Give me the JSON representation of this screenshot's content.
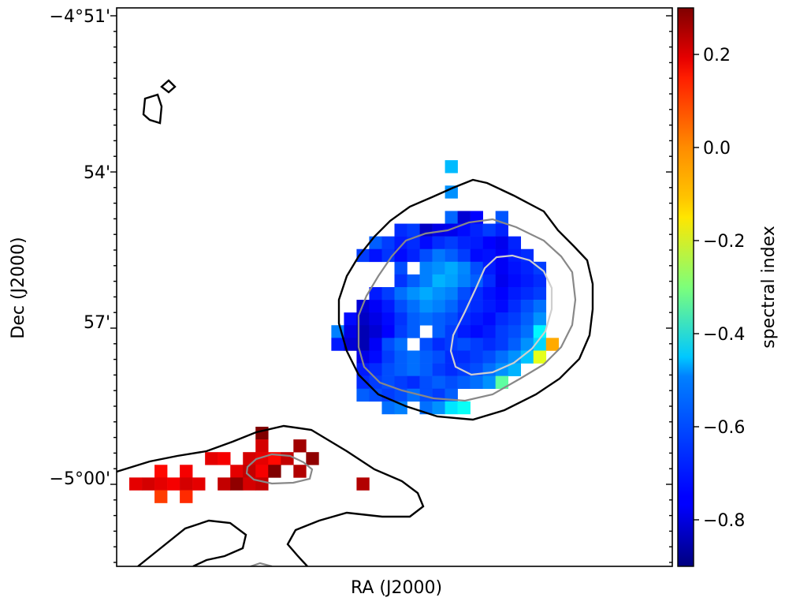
{
  "chart_data": {
    "type": "heatmap",
    "title": "",
    "xlabel": "RA (J2000)",
    "ylabel": "Dec (J2000)",
    "y_ticks": [
      "−4°51'",
      "54'",
      "57'",
      "−5°00'"
    ],
    "x_ticks": [],
    "colorbar": {
      "label": "spectral index",
      "colormap": "jet",
      "range": [
        -0.9,
        0.3
      ],
      "ticks": [
        0.2,
        0.0,
        -0.2,
        -0.4,
        -0.6,
        -0.8
      ],
      "tick_labels": [
        "0.2",
        "0.0",
        "−0.2",
        "−0.4",
        "−0.6",
        "−0.8"
      ]
    },
    "grid": false,
    "contours": [
      {
        "name": "outer contour",
        "color": "#000000"
      },
      {
        "name": "middle contour",
        "color": "#888888"
      },
      {
        "name": "inner contour",
        "color": "#cfcfcf"
      }
    ],
    "pixel_grid": {
      "columns": 44,
      "rows": 44,
      "cells": [
        [
          26,
          12,
          -0.53
        ],
        [
          26,
          14,
          -0.58
        ],
        [
          26,
          16,
          -0.63
        ],
        [
          26,
          17,
          -0.7
        ],
        [
          27,
          16,
          -0.8
        ],
        [
          28,
          16,
          -0.75
        ],
        [
          30,
          16,
          -0.65
        ],
        [
          22,
          17,
          -0.7
        ],
        [
          23,
          17,
          -0.68
        ],
        [
          24,
          17,
          -0.82
        ],
        [
          25,
          17,
          -0.78
        ],
        [
          26,
          17,
          -0.77
        ],
        [
          27,
          17,
          -0.74
        ],
        [
          28,
          17,
          -0.71
        ],
        [
          29,
          17,
          -0.68
        ],
        [
          30,
          17,
          -0.71
        ],
        [
          20,
          18,
          -0.64
        ],
        [
          21,
          18,
          -0.68
        ],
        [
          22,
          18,
          -0.72
        ],
        [
          23,
          18,
          -0.7
        ],
        [
          24,
          18,
          -0.74
        ],
        [
          25,
          18,
          -0.7
        ],
        [
          26,
          18,
          -0.68
        ],
        [
          27,
          18,
          -0.71
        ],
        [
          28,
          18,
          -0.72
        ],
        [
          29,
          18,
          -0.75
        ],
        [
          30,
          18,
          -0.77
        ],
        [
          31,
          18,
          -0.71
        ],
        [
          19,
          19,
          -0.68
        ],
        [
          20,
          19,
          -0.73
        ],
        [
          21,
          19,
          -0.69
        ],
        [
          22,
          19,
          -0.74
        ],
        [
          23,
          19,
          -0.71
        ],
        [
          24,
          19,
          -0.66
        ],
        [
          25,
          19,
          -0.61
        ],
        [
          26,
          19,
          -0.64
        ],
        [
          27,
          19,
          -0.68
        ],
        [
          28,
          19,
          -0.74
        ],
        [
          29,
          19,
          -0.73
        ],
        [
          30,
          19,
          -0.76
        ],
        [
          31,
          19,
          -0.72
        ],
        [
          32,
          19,
          -0.7
        ],
        [
          22,
          20,
          -0.66
        ],
        [
          24,
          20,
          -0.6
        ],
        [
          25,
          20,
          -0.58
        ],
        [
          26,
          20,
          -0.55
        ],
        [
          27,
          20,
          -0.59
        ],
        [
          28,
          20,
          -0.66
        ],
        [
          29,
          20,
          -0.72
        ],
        [
          30,
          20,
          -0.76
        ],
        [
          31,
          20,
          -0.73
        ],
        [
          32,
          20,
          -0.71
        ],
        [
          33,
          20,
          -0.68
        ],
        [
          22,
          21,
          -0.69
        ],
        [
          23,
          21,
          -0.64
        ],
        [
          24,
          21,
          -0.6
        ],
        [
          25,
          21,
          -0.54
        ],
        [
          26,
          21,
          -0.56
        ],
        [
          27,
          21,
          -0.6
        ],
        [
          28,
          21,
          -0.64
        ],
        [
          29,
          21,
          -0.7
        ],
        [
          30,
          21,
          -0.77
        ],
        [
          31,
          21,
          -0.74
        ],
        [
          32,
          21,
          -0.72
        ],
        [
          33,
          21,
          -0.7
        ],
        [
          20,
          22,
          -0.72
        ],
        [
          21,
          22,
          -0.68
        ],
        [
          22,
          22,
          -0.62
        ],
        [
          23,
          22,
          -0.58
        ],
        [
          24,
          22,
          -0.55
        ],
        [
          25,
          22,
          -0.58
        ],
        [
          26,
          22,
          -0.6
        ],
        [
          27,
          22,
          -0.66
        ],
        [
          28,
          22,
          -0.7
        ],
        [
          29,
          22,
          -0.73
        ],
        [
          30,
          22,
          -0.75
        ],
        [
          31,
          22,
          -0.72
        ],
        [
          32,
          22,
          -0.7
        ],
        [
          33,
          22,
          -0.68
        ],
        [
          19,
          23,
          -0.8
        ],
        [
          20,
          23,
          -0.76
        ],
        [
          21,
          23,
          -0.72
        ],
        [
          22,
          23,
          -0.66
        ],
        [
          23,
          23,
          -0.62
        ],
        [
          24,
          23,
          -0.58
        ],
        [
          25,
          23,
          -0.6
        ],
        [
          26,
          23,
          -0.63
        ],
        [
          27,
          23,
          -0.68
        ],
        [
          28,
          23,
          -0.7
        ],
        [
          29,
          23,
          -0.72
        ],
        [
          30,
          23,
          -0.74
        ],
        [
          31,
          23,
          -0.7
        ],
        [
          32,
          23,
          -0.66
        ],
        [
          33,
          23,
          -0.62
        ],
        [
          18,
          24,
          -0.74
        ],
        [
          19,
          24,
          -0.82
        ],
        [
          20,
          24,
          -0.78
        ],
        [
          21,
          24,
          -0.74
        ],
        [
          22,
          24,
          -0.69
        ],
        [
          23,
          24,
          -0.64
        ],
        [
          24,
          24,
          -0.62
        ],
        [
          25,
          24,
          -0.64
        ],
        [
          26,
          24,
          -0.66
        ],
        [
          27,
          24,
          -0.7
        ],
        [
          28,
          24,
          -0.72
        ],
        [
          29,
          24,
          -0.74
        ],
        [
          30,
          24,
          -0.7
        ],
        [
          31,
          24,
          -0.68
        ],
        [
          32,
          24,
          -0.64
        ],
        [
          33,
          24,
          -0.58
        ],
        [
          17,
          25,
          -0.6
        ],
        [
          18,
          25,
          -0.78
        ],
        [
          19,
          25,
          -0.84
        ],
        [
          20,
          25,
          -0.8
        ],
        [
          21,
          25,
          -0.75
        ],
        [
          22,
          25,
          -0.68
        ],
        [
          23,
          25,
          -0.64
        ],
        [
          25,
          25,
          -0.64
        ],
        [
          26,
          25,
          -0.68
        ],
        [
          27,
          25,
          -0.72
        ],
        [
          28,
          25,
          -0.74
        ],
        [
          29,
          25,
          -0.72
        ],
        [
          30,
          25,
          -0.68
        ],
        [
          31,
          25,
          -0.66
        ],
        [
          32,
          25,
          -0.62
        ],
        [
          33,
          25,
          -0.46
        ],
        [
          17,
          26,
          -0.72
        ],
        [
          18,
          26,
          -0.8
        ],
        [
          19,
          26,
          -0.84
        ],
        [
          20,
          26,
          -0.76
        ],
        [
          21,
          26,
          -0.66
        ],
        [
          22,
          26,
          -0.62
        ],
        [
          24,
          26,
          -0.66
        ],
        [
          25,
          26,
          -0.7
        ],
        [
          26,
          26,
          -0.68
        ],
        [
          27,
          26,
          -0.66
        ],
        [
          28,
          26,
          -0.68
        ],
        [
          29,
          26,
          -0.7
        ],
        [
          30,
          26,
          -0.68
        ],
        [
          31,
          26,
          -0.64
        ],
        [
          32,
          26,
          -0.58
        ],
        [
          33,
          26,
          -0.5
        ],
        [
          34,
          26,
          -0.05
        ],
        [
          19,
          27,
          -0.78
        ],
        [
          20,
          27,
          -0.74
        ],
        [
          21,
          27,
          -0.68
        ],
        [
          22,
          27,
          -0.64
        ],
        [
          23,
          27,
          -0.62
        ],
        [
          24,
          27,
          -0.64
        ],
        [
          25,
          27,
          -0.66
        ],
        [
          26,
          27,
          -0.7
        ],
        [
          27,
          27,
          -0.7
        ],
        [
          28,
          27,
          -0.68
        ],
        [
          29,
          27,
          -0.66
        ],
        [
          30,
          27,
          -0.62
        ],
        [
          31,
          27,
          -0.58
        ],
        [
          32,
          27,
          -0.52
        ],
        [
          33,
          27,
          -0.18
        ],
        [
          19,
          28,
          -0.72
        ],
        [
          20,
          28,
          -0.7
        ],
        [
          21,
          28,
          -0.66
        ],
        [
          22,
          28,
          -0.64
        ],
        [
          23,
          28,
          -0.62
        ],
        [
          24,
          28,
          -0.64
        ],
        [
          25,
          28,
          -0.68
        ],
        [
          26,
          28,
          -0.7
        ],
        [
          27,
          28,
          -0.68
        ],
        [
          28,
          28,
          -0.66
        ],
        [
          29,
          28,
          -0.62
        ],
        [
          30,
          28,
          -0.58
        ],
        [
          31,
          28,
          -0.54
        ],
        [
          19,
          29,
          -0.7
        ],
        [
          20,
          29,
          -0.68
        ],
        [
          21,
          29,
          -0.66
        ],
        [
          22,
          29,
          -0.68
        ],
        [
          23,
          29,
          -0.7
        ],
        [
          24,
          29,
          -0.66
        ],
        [
          25,
          29,
          -0.64
        ],
        [
          26,
          29,
          -0.66
        ],
        [
          27,
          29,
          -0.64
        ],
        [
          28,
          29,
          -0.62
        ],
        [
          29,
          29,
          -0.58
        ],
        [
          30,
          29,
          -0.34
        ],
        [
          19,
          30,
          -0.64
        ],
        [
          20,
          30,
          -0.66
        ],
        [
          21,
          30,
          -0.68
        ],
        [
          22,
          30,
          -0.66
        ],
        [
          23,
          30,
          -0.62
        ],
        [
          24,
          30,
          -0.66
        ],
        [
          25,
          30,
          -0.68
        ],
        [
          26,
          30,
          -0.64
        ],
        [
          21,
          31,
          -0.62
        ],
        [
          22,
          31,
          -0.6
        ],
        [
          24,
          31,
          -0.62
        ],
        [
          25,
          31,
          -0.58
        ],
        [
          26,
          31,
          -0.48
        ],
        [
          27,
          31,
          -0.44
        ],
        [
          11,
          33,
          0.3
        ],
        [
          11,
          34,
          0.2
        ],
        [
          14,
          34,
          0.26
        ],
        [
          7,
          35,
          0.18
        ],
        [
          8,
          35,
          0.16
        ],
        [
          10,
          35,
          0.2
        ],
        [
          11,
          35,
          0.18
        ],
        [
          12,
          35,
          0.14
        ],
        [
          13,
          35,
          0.22
        ],
        [
          15,
          35,
          0.28
        ],
        [
          3,
          36,
          0.14
        ],
        [
          5,
          36,
          0.16
        ],
        [
          9,
          36,
          0.18
        ],
        [
          10,
          36,
          0.22
        ],
        [
          11,
          36,
          0.16
        ],
        [
          12,
          36,
          0.3
        ],
        [
          14,
          36,
          0.24
        ],
        [
          1,
          37,
          0.18
        ],
        [
          2,
          37,
          0.2
        ],
        [
          3,
          37,
          0.18
        ],
        [
          4,
          37,
          0.16
        ],
        [
          5,
          37,
          0.2
        ],
        [
          6,
          37,
          0.18
        ],
        [
          8,
          37,
          0.22
        ],
        [
          9,
          37,
          0.28
        ],
        [
          10,
          37,
          0.2
        ],
        [
          11,
          37,
          0.22
        ],
        [
          19,
          37,
          0.24
        ],
        [
          3,
          38,
          0.08
        ],
        [
          5,
          38,
          0.1
        ]
      ]
    }
  }
}
